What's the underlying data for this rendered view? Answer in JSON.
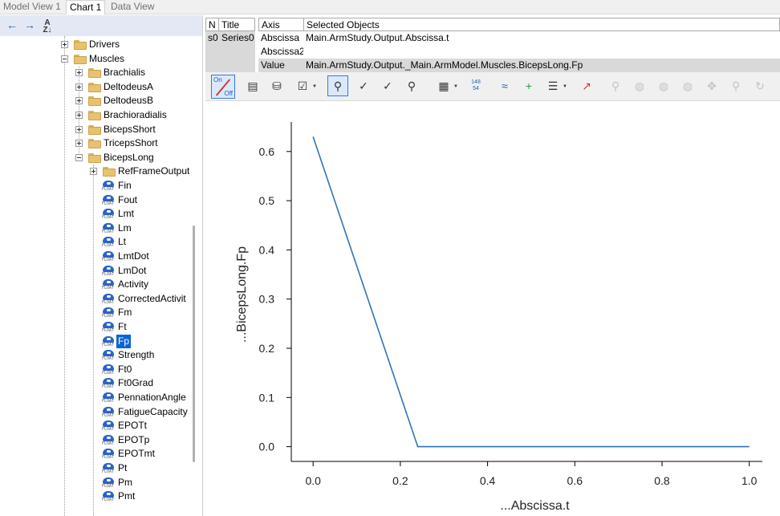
{
  "tabs": [
    {
      "label": "Model View 1",
      "active": false
    },
    {
      "label": "Chart 1",
      "active": true
    },
    {
      "label": "Data View",
      "active": false
    }
  ],
  "tree": {
    "items": [
      {
        "label": "Drivers",
        "kind": "folder",
        "level": 0,
        "expander": "plus"
      },
      {
        "label": "Muscles",
        "kind": "folder",
        "level": 0,
        "expander": "minus"
      },
      {
        "label": "Brachialis",
        "kind": "folder",
        "level": 1,
        "expander": "plus"
      },
      {
        "label": "DeltodeusA",
        "kind": "folder",
        "level": 1,
        "expander": "plus"
      },
      {
        "label": "DeltodeusB",
        "kind": "folder",
        "level": 1,
        "expander": "plus"
      },
      {
        "label": "Brachioradialis",
        "kind": "folder",
        "level": 1,
        "expander": "plus"
      },
      {
        "label": "BicepsShort",
        "kind": "folder",
        "level": 1,
        "expander": "plus"
      },
      {
        "label": "TricepsShort",
        "kind": "folder",
        "level": 1,
        "expander": "plus"
      },
      {
        "label": "BicepsLong",
        "kind": "folder",
        "level": 1,
        "expander": "minus"
      },
      {
        "label": "RefFrameOutput",
        "kind": "folder",
        "level": 2,
        "expander": "plus"
      },
      {
        "label": "Fin",
        "kind": "float",
        "level": 2
      },
      {
        "label": "Fout",
        "kind": "float",
        "level": 2
      },
      {
        "label": "Lmt",
        "kind": "float",
        "level": 2
      },
      {
        "label": "Lm",
        "kind": "float",
        "level": 2
      },
      {
        "label": "Lt",
        "kind": "float",
        "level": 2
      },
      {
        "label": "LmtDot",
        "kind": "float",
        "level": 2
      },
      {
        "label": "LmDot",
        "kind": "float",
        "level": 2
      },
      {
        "label": "Activity",
        "kind": "float",
        "level": 2
      },
      {
        "label": "CorrectedActivit",
        "kind": "float",
        "level": 2
      },
      {
        "label": "Fm",
        "kind": "float",
        "level": 2
      },
      {
        "label": "Ft",
        "kind": "float",
        "level": 2
      },
      {
        "label": "Fp",
        "kind": "float",
        "level": 2,
        "selected": true
      },
      {
        "label": "Strength",
        "kind": "float",
        "level": 2
      },
      {
        "label": "Ft0",
        "kind": "float",
        "level": 2
      },
      {
        "label": "Ft0Grad",
        "kind": "float",
        "level": 2
      },
      {
        "label": "PennationAngle",
        "kind": "float",
        "level": 2
      },
      {
        "label": "FatigueCapacity",
        "kind": "float",
        "level": 2
      },
      {
        "label": "EPOTt",
        "kind": "float",
        "level": 2
      },
      {
        "label": "EPOTp",
        "kind": "float",
        "level": 2
      },
      {
        "label": "EPOTmt",
        "kind": "float",
        "level": 2
      },
      {
        "label": "Pt",
        "kind": "float",
        "level": 2
      },
      {
        "label": "Pm",
        "kind": "float",
        "level": 2
      },
      {
        "label": "Pmt",
        "kind": "float",
        "level": 2
      }
    ],
    "float_icon_text": "FLOAT"
  },
  "series_table": {
    "headers": {
      "n": "N",
      "title": "Title",
      "axis": "Axis",
      "objects": "Selected Objects"
    },
    "row_id": "s0",
    "row_title": "Series0",
    "axes": [
      {
        "axis": "Abscissa",
        "object": "Main.ArmStudy.Output.Abscissa.t"
      },
      {
        "axis": "Abscissa2",
        "object": ""
      },
      {
        "axis": "Value",
        "object": "Main.ArmStudy.Output._Main.ArmModel.Muscles.BicepsLong.Fp"
      }
    ]
  },
  "toolbar": {
    "onoff_top": "On",
    "onoff_bottom": "Off",
    "point_count_top": "148",
    "point_count_bottom": "54"
  },
  "chart_data": {
    "type": "line",
    "title": "",
    "xlabel": "...Abscissa.t",
    "ylabel": "...BicepsLong.Fp",
    "xlim": [
      -0.05,
      1.03
    ],
    "ylim": [
      -0.03,
      0.66
    ],
    "xticks": [
      "0.0",
      "0.2",
      "0.4",
      "0.6",
      "0.8",
      "1.0"
    ],
    "yticks": [
      "0.0",
      "0.1",
      "0.2",
      "0.3",
      "0.4",
      "0.5",
      "0.6"
    ],
    "grid": false,
    "series": [
      {
        "color": "#2e75b6",
        "x": [
          0.0,
          0.24,
          1.0
        ],
        "y": [
          0.63,
          0.0,
          0.0
        ]
      }
    ]
  }
}
